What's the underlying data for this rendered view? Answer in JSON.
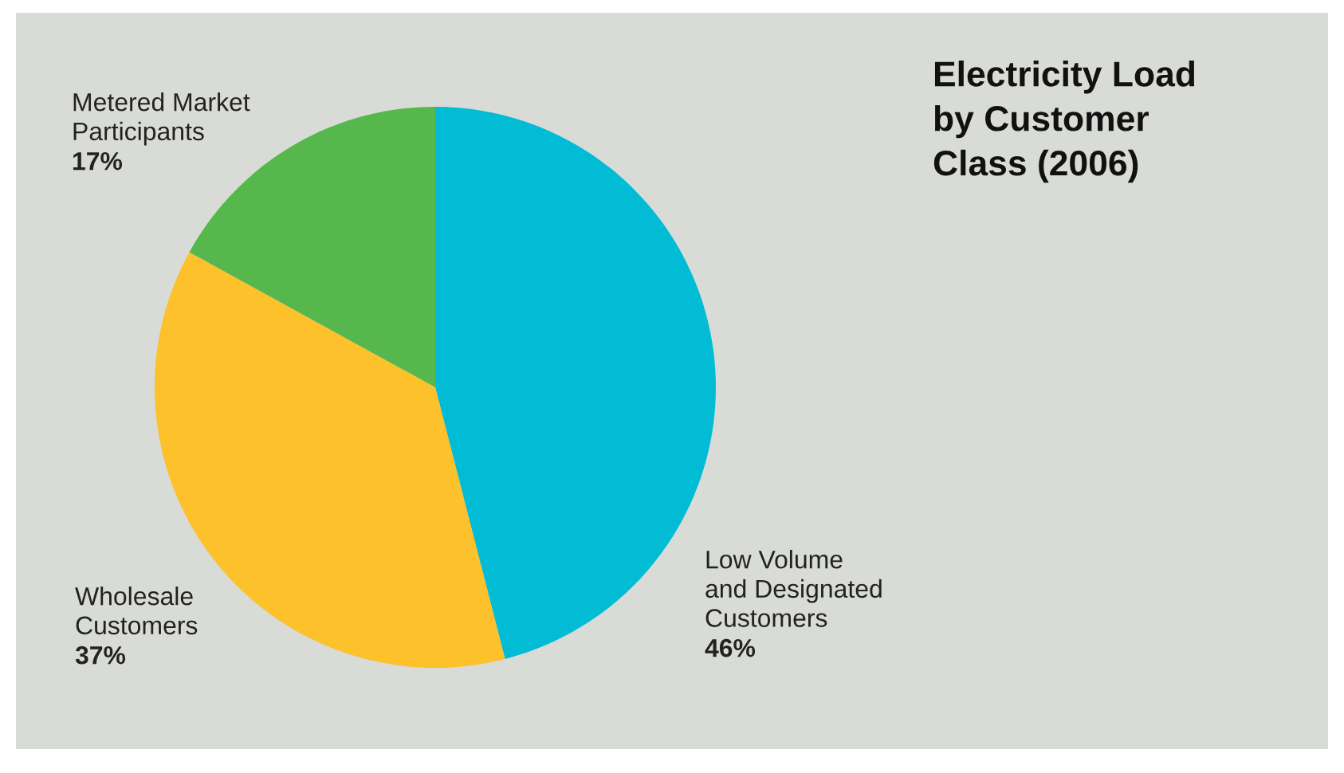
{
  "chart_data": {
    "type": "pie",
    "title": "Electricity Load\nby Customer\nClass (2006)",
    "categories": [
      "Low Volume\nand Designated\nCustomers",
      "Wholesale\nCustomers",
      "Metered Market\nParticipants"
    ],
    "values": [
      46,
      37,
      17
    ],
    "value_labels": [
      "46%",
      "37%",
      "17%"
    ],
    "colors": [
      "#02bcd6",
      "#fcc12b",
      "#56b84c"
    ],
    "legend": false
  }
}
